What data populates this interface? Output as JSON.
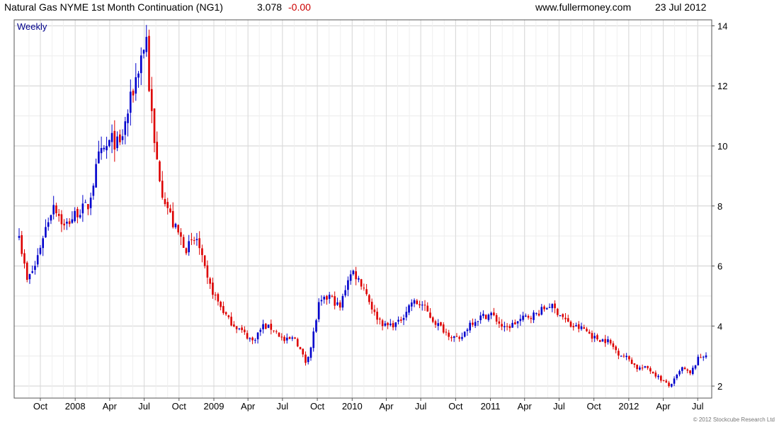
{
  "header": {
    "title": "Natural Gas NYME 1st Month Continuation (NG1)",
    "price": "3.078",
    "change": "-0.00",
    "website": "www.fullermoney.com",
    "date": "23 Jul 2012"
  },
  "copyright": "© 2012 Stockcube Research Ltd",
  "colors": {
    "up": "#0000cc",
    "down": "#dd0000",
    "grid": "#dddddd",
    "frame": "#555555",
    "label_weekly": "#00008b",
    "change": "#cc0000"
  },
  "chart_data": {
    "type": "candlestick",
    "period_label": "Weekly",
    "x_tick_labels": [
      "Oct",
      "2008",
      "Apr",
      "Jul",
      "Oct",
      "2009",
      "Apr",
      "Jul",
      "Oct",
      "2010",
      "Apr",
      "Jul",
      "Oct",
      "2011",
      "Apr",
      "Jul",
      "Oct",
      "2012",
      "Apr",
      "Jul"
    ],
    "y_ticks": [
      2,
      4,
      6,
      8,
      10,
      12,
      14
    ],
    "ylim": [
      1.6,
      14.2
    ],
    "grid": true,
    "close_points": [
      [
        "2007-08-06",
        7.0
      ],
      [
        "2007-08-27",
        5.5
      ],
      [
        "2007-09-17",
        6.0
      ],
      [
        "2007-10-08",
        7.0
      ],
      [
        "2007-11-05",
        8.1
      ],
      [
        "2007-12-03",
        7.3
      ],
      [
        "2008-01-07",
        7.8
      ],
      [
        "2008-02-04",
        8.0
      ],
      [
        "2008-03-03",
        9.6
      ],
      [
        "2008-04-07",
        10.2
      ],
      [
        "2008-04-28",
        10.0
      ],
      [
        "2008-05-26",
        11.5
      ],
      [
        "2008-06-23",
        13.0
      ],
      [
        "2008-07-07",
        13.6
      ],
      [
        "2008-07-14",
        12.0
      ],
      [
        "2008-07-28",
        10.0
      ],
      [
        "2008-08-18",
        8.5
      ],
      [
        "2008-09-15",
        7.4
      ],
      [
        "2008-10-20",
        6.6
      ],
      [
        "2008-11-17",
        6.9
      ],
      [
        "2008-12-15",
        5.5
      ],
      [
        "2009-01-12",
        4.8
      ],
      [
        "2009-02-09",
        4.2
      ],
      [
        "2009-03-09",
        3.9
      ],
      [
        "2009-04-13",
        3.5
      ],
      [
        "2009-05-11",
        4.0
      ],
      [
        "2009-06-08",
        3.9
      ],
      [
        "2009-07-06",
        3.5
      ],
      [
        "2009-08-03",
        3.6
      ],
      [
        "2009-08-31",
        2.8
      ],
      [
        "2009-09-14",
        3.3
      ],
      [
        "2009-10-05",
        4.7
      ],
      [
        "2009-11-02",
        5.0
      ],
      [
        "2009-11-30",
        4.6
      ],
      [
        "2009-12-21",
        5.6
      ],
      [
        "2010-01-04",
        5.8
      ],
      [
        "2010-02-01",
        5.3
      ],
      [
        "2010-03-01",
        4.4
      ],
      [
        "2010-03-29",
        4.0
      ],
      [
        "2010-05-03",
        4.1
      ],
      [
        "2010-06-07",
        4.8
      ],
      [
        "2010-07-05",
        4.7
      ],
      [
        "2010-08-02",
        4.2
      ],
      [
        "2010-09-06",
        3.8
      ],
      [
        "2010-10-11",
        3.5
      ],
      [
        "2010-11-08",
        4.1
      ],
      [
        "2010-12-06",
        4.3
      ],
      [
        "2011-01-03",
        4.4
      ],
      [
        "2011-02-07",
        3.9
      ],
      [
        "2011-03-07",
        4.1
      ],
      [
        "2011-04-04",
        4.3
      ],
      [
        "2011-05-02",
        4.4
      ],
      [
        "2011-06-06",
        4.7
      ],
      [
        "2011-07-04",
        4.4
      ],
      [
        "2011-08-01",
        4.0
      ],
      [
        "2011-09-05",
        3.9
      ],
      [
        "2011-10-03",
        3.6
      ],
      [
        "2011-11-07",
        3.5
      ],
      [
        "2011-12-05",
        3.1
      ],
      [
        "2012-01-02",
        2.9
      ],
      [
        "2012-01-23",
        2.6
      ],
      [
        "2012-02-20",
        2.6
      ],
      [
        "2012-03-19",
        2.3
      ],
      [
        "2012-04-16",
        2.0
      ],
      [
        "2012-04-30",
        2.2
      ],
      [
        "2012-05-21",
        2.6
      ],
      [
        "2012-06-11",
        2.4
      ],
      [
        "2012-07-02",
        2.9
      ],
      [
        "2012-07-23",
        3.078
      ]
    ]
  }
}
